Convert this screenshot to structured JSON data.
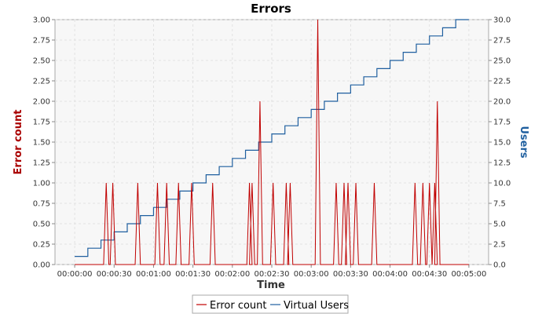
{
  "chart_data": {
    "type": "line",
    "title": "Errors",
    "xlabel": "Time",
    "ylabel_left": "Error count",
    "ylabel_right": "Users",
    "x_ticks": [
      "00:00:00",
      "00:00:30",
      "00:01:00",
      "00:01:30",
      "00:02:00",
      "00:02:30",
      "00:03:00",
      "00:03:30",
      "00:04:00",
      "00:04:30",
      "00:05:00"
    ],
    "xlim_seconds": [
      -15,
      315
    ],
    "ylim_left": [
      0,
      3.0
    ],
    "ylim_right": [
      0,
      30.0
    ],
    "y_ticks_left": [
      "0.00",
      "0.25",
      "0.50",
      "0.75",
      "1.00",
      "1.25",
      "1.50",
      "1.75",
      "2.00",
      "2.25",
      "2.50",
      "2.75",
      "3.00"
    ],
    "y_ticks_right": [
      "0.0",
      "2.5",
      "5.0",
      "7.5",
      "10.0",
      "12.5",
      "15.0",
      "17.5",
      "20.0",
      "22.5",
      "25.0",
      "27.5",
      "30.0"
    ],
    "grid": true,
    "legend_position": "bottom",
    "colors": {
      "error": "#c00000",
      "users": "#1f5f9f",
      "left_axis_title": "#aa0000",
      "right_axis_title": "#1f5f9f",
      "plot_bg": "#f7f7f7",
      "grid": "#dddddd"
    },
    "series": [
      {
        "name": "Error count",
        "axis": "left",
        "style": "line",
        "x_seconds": [
          0,
          22,
          24,
          26,
          27,
          29,
          31,
          46,
          48,
          50,
          61,
          63,
          65,
          68,
          70,
          72,
          77,
          79,
          81,
          87,
          89,
          91,
          103,
          105,
          107,
          131,
          133,
          135,
          133,
          135,
          137,
          139,
          141,
          143,
          149,
          151,
          153,
          159,
          161,
          163,
          162,
          164,
          166,
          183,
          185,
          187,
          197,
          199,
          201,
          203,
          205,
          207,
          206,
          208,
          210,
          212,
          214,
          216,
          226,
          228,
          230,
          257,
          259,
          261,
          263,
          265,
          267,
          268,
          270,
          272,
          272,
          274,
          276,
          274,
          276,
          278,
          300
        ],
        "values": [
          0,
          0,
          1,
          0,
          0,
          1,
          0,
          0,
          1,
          0,
          0,
          1,
          0,
          0,
          1,
          0,
          0,
          1,
          0,
          0,
          1,
          0,
          0,
          1,
          0,
          0,
          1,
          0,
          0,
          1,
          0,
          0,
          2,
          0,
          0,
          1,
          0,
          0,
          1,
          0,
          0,
          1,
          0,
          0,
          3,
          0,
          0,
          1,
          0,
          0,
          1,
          0,
          0,
          1,
          0,
          0,
          1,
          0,
          0,
          1,
          0,
          0,
          1,
          0,
          0,
          1,
          0,
          0,
          1,
          0,
          0,
          1,
          0,
          0,
          2,
          0,
          0
        ]
      },
      {
        "name": "Virtual Users",
        "axis": "right",
        "style": "step",
        "x_seconds": [
          0,
          10,
          20,
          30,
          40,
          50,
          60,
          70,
          80,
          90,
          100,
          110,
          120,
          130,
          140,
          150,
          160,
          170,
          180,
          190,
          200,
          210,
          220,
          230,
          240,
          250,
          260,
          270,
          280,
          290,
          300
        ],
        "values": [
          1,
          2,
          3,
          4,
          5,
          6,
          7,
          8,
          9,
          10,
          11,
          12,
          13,
          14,
          15,
          16,
          17,
          18,
          19,
          20,
          21,
          22,
          23,
          24,
          25,
          26,
          27,
          28,
          29,
          30,
          30
        ]
      }
    ]
  }
}
